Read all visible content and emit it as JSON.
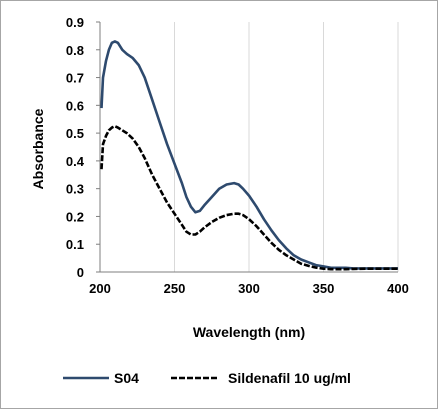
{
  "chart_data": {
    "type": "line",
    "title": "",
    "xlabel": "Wavelength (nm)",
    "ylabel": "Absorbance",
    "xlim": [
      200,
      400
    ],
    "ylim": [
      0,
      0.9
    ],
    "x_ticks": [
      "200",
      "250",
      "300",
      "350",
      "400"
    ],
    "y_ticks": [
      "0",
      "0.1",
      "0.2",
      "0.3",
      "0.4",
      "0.5",
      "0.6",
      "0.7",
      "0.8",
      "0.9"
    ],
    "grid": "vertical",
    "legend_position": "bottom",
    "series": [
      {
        "name": "S04",
        "color": "#2e4a6e",
        "style": "solid",
        "x": [
          201,
          202,
          204,
          206,
          208,
          210,
          212,
          215,
          218,
          222,
          226,
          230,
          235,
          240,
          245,
          250,
          255,
          258,
          261,
          264,
          267,
          270,
          275,
          280,
          285,
          290,
          293,
          296,
          300,
          305,
          310,
          315,
          320,
          325,
          330,
          335,
          340,
          345,
          350,
          355,
          360,
          365,
          370,
          380,
          390,
          400
        ],
        "y": [
          0.59,
          0.7,
          0.76,
          0.8,
          0.825,
          0.83,
          0.825,
          0.8,
          0.785,
          0.77,
          0.745,
          0.7,
          0.62,
          0.54,
          0.46,
          0.39,
          0.32,
          0.27,
          0.235,
          0.215,
          0.22,
          0.24,
          0.27,
          0.3,
          0.315,
          0.32,
          0.315,
          0.3,
          0.275,
          0.235,
          0.19,
          0.15,
          0.115,
          0.085,
          0.06,
          0.045,
          0.035,
          0.025,
          0.02,
          0.015,
          0.015,
          0.015,
          0.013,
          0.013,
          0.013,
          0.013
        ]
      },
      {
        "name": "Sildenafil 10 ug/ml",
        "color": "#000000",
        "style": "dashed",
        "x": [
          201,
          202,
          204,
          206,
          208,
          210,
          212,
          215,
          218,
          222,
          226,
          230,
          235,
          240,
          245,
          250,
          255,
          258,
          261,
          264,
          267,
          270,
          275,
          280,
          285,
          290,
          293,
          296,
          300,
          305,
          310,
          315,
          320,
          325,
          330,
          335,
          340,
          345,
          350,
          355,
          360,
          365,
          370,
          380,
          390,
          400
        ],
        "y": [
          0.37,
          0.46,
          0.49,
          0.51,
          0.52,
          0.525,
          0.52,
          0.51,
          0.5,
          0.48,
          0.45,
          0.41,
          0.35,
          0.3,
          0.25,
          0.21,
          0.17,
          0.145,
          0.135,
          0.135,
          0.145,
          0.16,
          0.18,
          0.195,
          0.205,
          0.21,
          0.21,
          0.205,
          0.19,
          0.165,
          0.135,
          0.105,
          0.08,
          0.06,
          0.045,
          0.03,
          0.022,
          0.016,
          0.012,
          0.01,
          0.01,
          0.01,
          0.011,
          0.012,
          0.012,
          0.012
        ]
      }
    ]
  }
}
